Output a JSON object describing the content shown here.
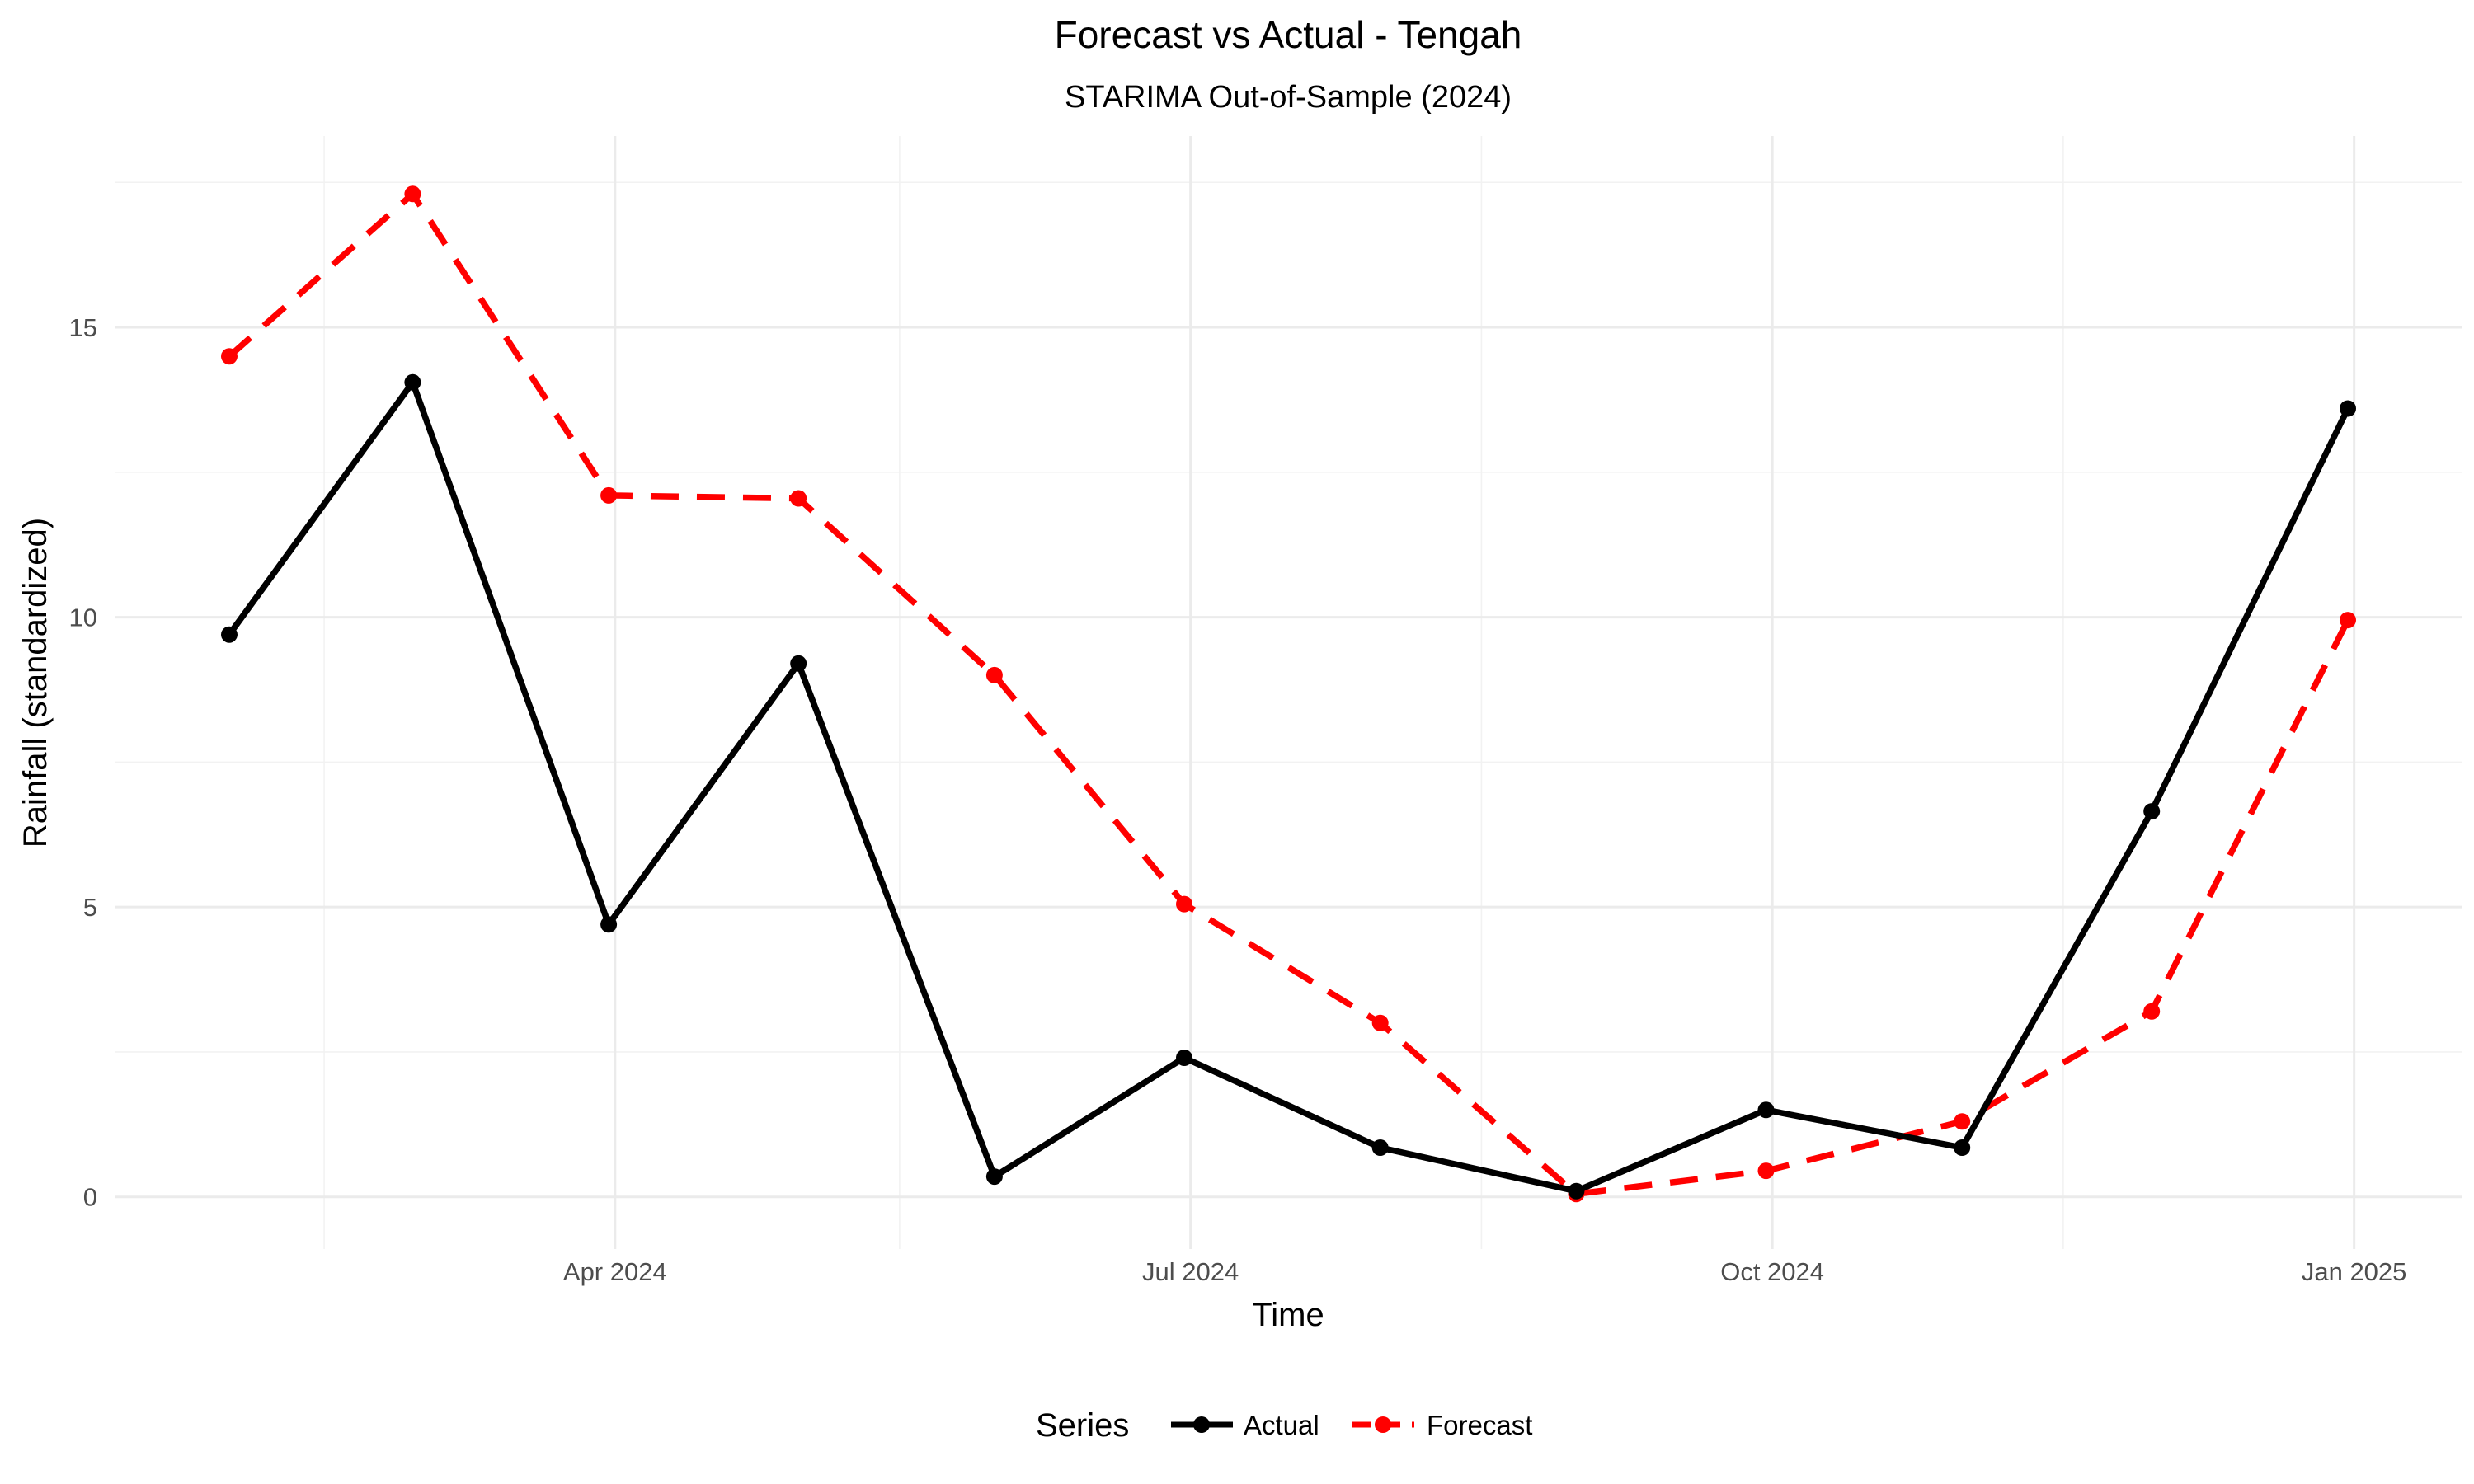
{
  "chart_data": {
    "type": "line",
    "title": "Forecast vs Actual - Tengah",
    "subtitle": "STARIMA Out-of-Sample (2024)",
    "xlabel": "Time",
    "ylabel": "Rainfall (standardized)",
    "x": [
      "2024-01-31",
      "2024-02-29",
      "2024-03-31",
      "2024-04-30",
      "2024-05-31",
      "2024-06-30",
      "2024-07-31",
      "2024-08-31",
      "2024-09-30",
      "2024-10-31",
      "2024-11-30",
      "2024-12-31"
    ],
    "x_ticks": [
      {
        "date": "2024-04-01",
        "label": "Apr 2024"
      },
      {
        "date": "2024-07-01",
        "label": "Jul 2024"
      },
      {
        "date": "2024-10-01",
        "label": "Oct 2024"
      },
      {
        "date": "2025-01-01",
        "label": "Jan 2025"
      }
    ],
    "x_minor_ticks": [
      "2024-02-15",
      "2024-05-16",
      "2024-08-16",
      "2024-11-16"
    ],
    "xlim": [
      "2024-01-13",
      "2025-01-18"
    ],
    "y_ticks": [
      0,
      5,
      10,
      15
    ],
    "y_minor_ticks": [
      2.5,
      7.5,
      12.5,
      17.5
    ],
    "ylim": [
      -0.9,
      18.3
    ],
    "grid": true,
    "series": [
      {
        "name": "Actual",
        "color": "#000000",
        "dash": "solid",
        "values": [
          9.7,
          14.05,
          4.7,
          9.2,
          0.35,
          2.4,
          0.85,
          0.1,
          1.5,
          0.85,
          6.65,
          13.6
        ]
      },
      {
        "name": "Forecast",
        "color": "#ff0000",
        "dash": "dashed",
        "values": [
          14.5,
          17.3,
          12.1,
          12.05,
          9.0,
          5.05,
          3.0,
          0.05,
          0.45,
          1.3,
          3.2,
          9.95
        ]
      }
    ],
    "legend": {
      "title": "Series",
      "position": "bottom"
    }
  }
}
